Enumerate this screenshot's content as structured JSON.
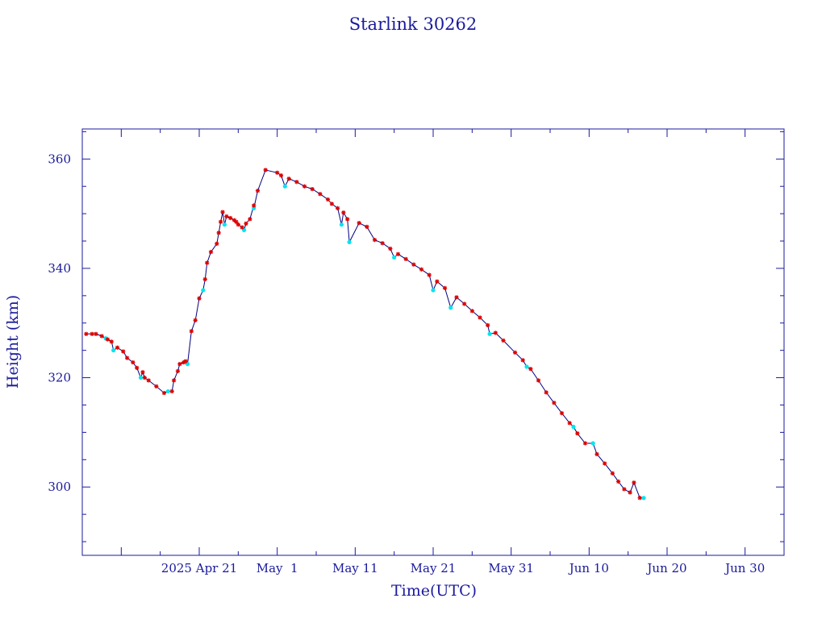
{
  "chart_data": {
    "type": "scatter",
    "title": "Starlink 30262",
    "xlabel": "Time(UTC)",
    "ylabel": "Height (km)",
    "xlim": [
      "2025-04-06",
      "2025-07-05"
    ],
    "ylim": [
      287.5,
      365.5
    ],
    "x_ticks": [
      {
        "date": "2025-04-21",
        "label": "2025 Apr 21"
      },
      {
        "date": "2025-05-01",
        "label": "May  1"
      },
      {
        "date": "2025-05-11",
        "label": "May 11"
      },
      {
        "date": "2025-05-21",
        "label": "May 21"
      },
      {
        "date": "2025-05-31",
        "label": "May 31"
      },
      {
        "date": "2025-06-10",
        "label": "Jun 10"
      },
      {
        "date": "2025-06-20",
        "label": "Jun 20"
      },
      {
        "date": "2025-06-30",
        "label": "Jun 30"
      }
    ],
    "y_ticks": [
      300,
      320,
      340,
      360
    ],
    "grid": false,
    "legend": "none",
    "colors": {
      "axis": "#1a1a9c",
      "line": "#000080",
      "marker_primary": "#dd0000",
      "marker_secondary": "#00e5ee"
    },
    "series": [
      {
        "marker": "red-star",
        "x": [
          "2025-04-06 12:00",
          "2025-04-07 06:00",
          "2025-04-07 18:00",
          "2025-04-08 12:00",
          "2025-04-09 06:00",
          "2025-04-09 18:00",
          "2025-04-10 12:00",
          "2025-04-11 06:00",
          "2025-04-11 18:00",
          "2025-04-12 12:00",
          "2025-04-13 00:00",
          "2025-04-13 18:00",
          "2025-04-14 00:00",
          "2025-04-14 12:00",
          "2025-04-15 12:00",
          "2025-04-16 12:00",
          "2025-04-17 12:00",
          "2025-04-17 18:00",
          "2025-04-18 06:00",
          "2025-04-18 12:00",
          "2025-04-19 00:00",
          "2025-04-19 06:00",
          "2025-04-20 00:00",
          "2025-04-20 12:00",
          "2025-04-21 00:00",
          "2025-04-21 18:00",
          "2025-04-22 00:00",
          "2025-04-22 12:00",
          "2025-04-23 06:00",
          "2025-04-23 12:00",
          "2025-04-23 18:00",
          "2025-04-24 00:00",
          "2025-04-24 12:00",
          "2025-04-25 00:00",
          "2025-04-25 12:00",
          "2025-04-25 18:00",
          "2025-04-26 00:00",
          "2025-04-26 12:00",
          "2025-04-27 00:00",
          "2025-04-27 12:00",
          "2025-04-28 00:00",
          "2025-04-28 12:00",
          "2025-04-29 12:00",
          "2025-05-01 00:00",
          "2025-05-01 12:00",
          "2025-05-02 12:00",
          "2025-05-03 12:00",
          "2025-05-04 12:00",
          "2025-05-05 12:00",
          "2025-05-06 12:00",
          "2025-05-07 12:00",
          "2025-05-08 00:00",
          "2025-05-08 18:00",
          "2025-05-09 12:00",
          "2025-05-10 00:00",
          "2025-05-11 12:00",
          "2025-05-12 12:00",
          "2025-05-13 12:00",
          "2025-05-14 12:00",
          "2025-05-15 12:00",
          "2025-05-16 12:00",
          "2025-05-17 12:00",
          "2025-05-18 12:00",
          "2025-05-19 12:00",
          "2025-05-20 12:00",
          "2025-05-21 12:00",
          "2025-05-22 12:00",
          "2025-05-24 00:00",
          "2025-05-25 00:00",
          "2025-05-26 00:00",
          "2025-05-27 00:00",
          "2025-05-28 00:00",
          "2025-05-29 00:00",
          "2025-05-30 00:00",
          "2025-05-31 12:00",
          "2025-06-01 12:00",
          "2025-06-02 12:00",
          "2025-06-03 12:00",
          "2025-06-04 12:00",
          "2025-06-05 12:00",
          "2025-06-06 12:00",
          "2025-06-07 12:00",
          "2025-06-08 12:00",
          "2025-06-09 12:00",
          "2025-06-11 00:00",
          "2025-06-12 00:00",
          "2025-06-13 00:00",
          "2025-06-13 18:00",
          "2025-06-14 12:00",
          "2025-06-15 06:00",
          "2025-06-15 18:00",
          "2025-06-16 12:00"
        ],
        "y": [
          328.0,
          328.0,
          328.0,
          327.6,
          327.0,
          326.6,
          325.5,
          324.8,
          323.6,
          322.8,
          321.8,
          321.0,
          320.0,
          319.5,
          318.4,
          317.2,
          317.5,
          319.5,
          321.2,
          322.5,
          322.8,
          323.0,
          328.5,
          330.5,
          334.5,
          338.0,
          341.0,
          343.0,
          344.5,
          346.5,
          348.5,
          350.3,
          349.5,
          349.2,
          348.8,
          348.5,
          348.0,
          347.5,
          348.2,
          349.0,
          351.5,
          354.2,
          358.0,
          357.5,
          357.0,
          356.4,
          355.8,
          355.0,
          354.5,
          353.6,
          352.6,
          351.8,
          351.0,
          350.2,
          349.0,
          348.3,
          347.6,
          345.2,
          344.6,
          343.6,
          342.6,
          341.7,
          340.7,
          339.8,
          338.8,
          337.6,
          336.4,
          334.7,
          333.5,
          332.2,
          331.0,
          329.6,
          328.2,
          326.8,
          324.6,
          323.2,
          321.6,
          319.5,
          317.3,
          315.4,
          313.5,
          311.7,
          309.8,
          308.0,
          306.0,
          304.3,
          302.5,
          301.0,
          299.6,
          299.0,
          300.8,
          298.0
        ]
      },
      {
        "marker": "cyan-dot",
        "x": [
          "2025-04-09 00:00",
          "2025-04-10 00:00",
          "2025-04-13 12:00",
          "2025-04-17 00:00",
          "2025-04-19 12:00",
          "2025-04-21 12:00",
          "2025-04-24 06:00",
          "2025-04-26 18:00",
          "2025-04-28 00:00",
          "2025-05-02 00:00",
          "2025-05-09 06:00",
          "2025-05-10 06:00",
          "2025-05-16 00:00",
          "2025-05-21 00:00",
          "2025-05-23 06:00",
          "2025-05-28 06:00",
          "2025-06-02 00:00",
          "2025-06-08 00:00",
          "2025-06-10 12:00",
          "2025-06-17 00:00"
        ],
        "y": [
          327.2,
          325.0,
          320.0,
          317.5,
          322.5,
          336.0,
          348.0,
          347.0,
          351.0,
          355.0,
          348.0,
          344.8,
          342.0,
          336.0,
          332.8,
          328.0,
          322.0,
          311.0,
          308.0,
          298.0
        ]
      }
    ]
  }
}
